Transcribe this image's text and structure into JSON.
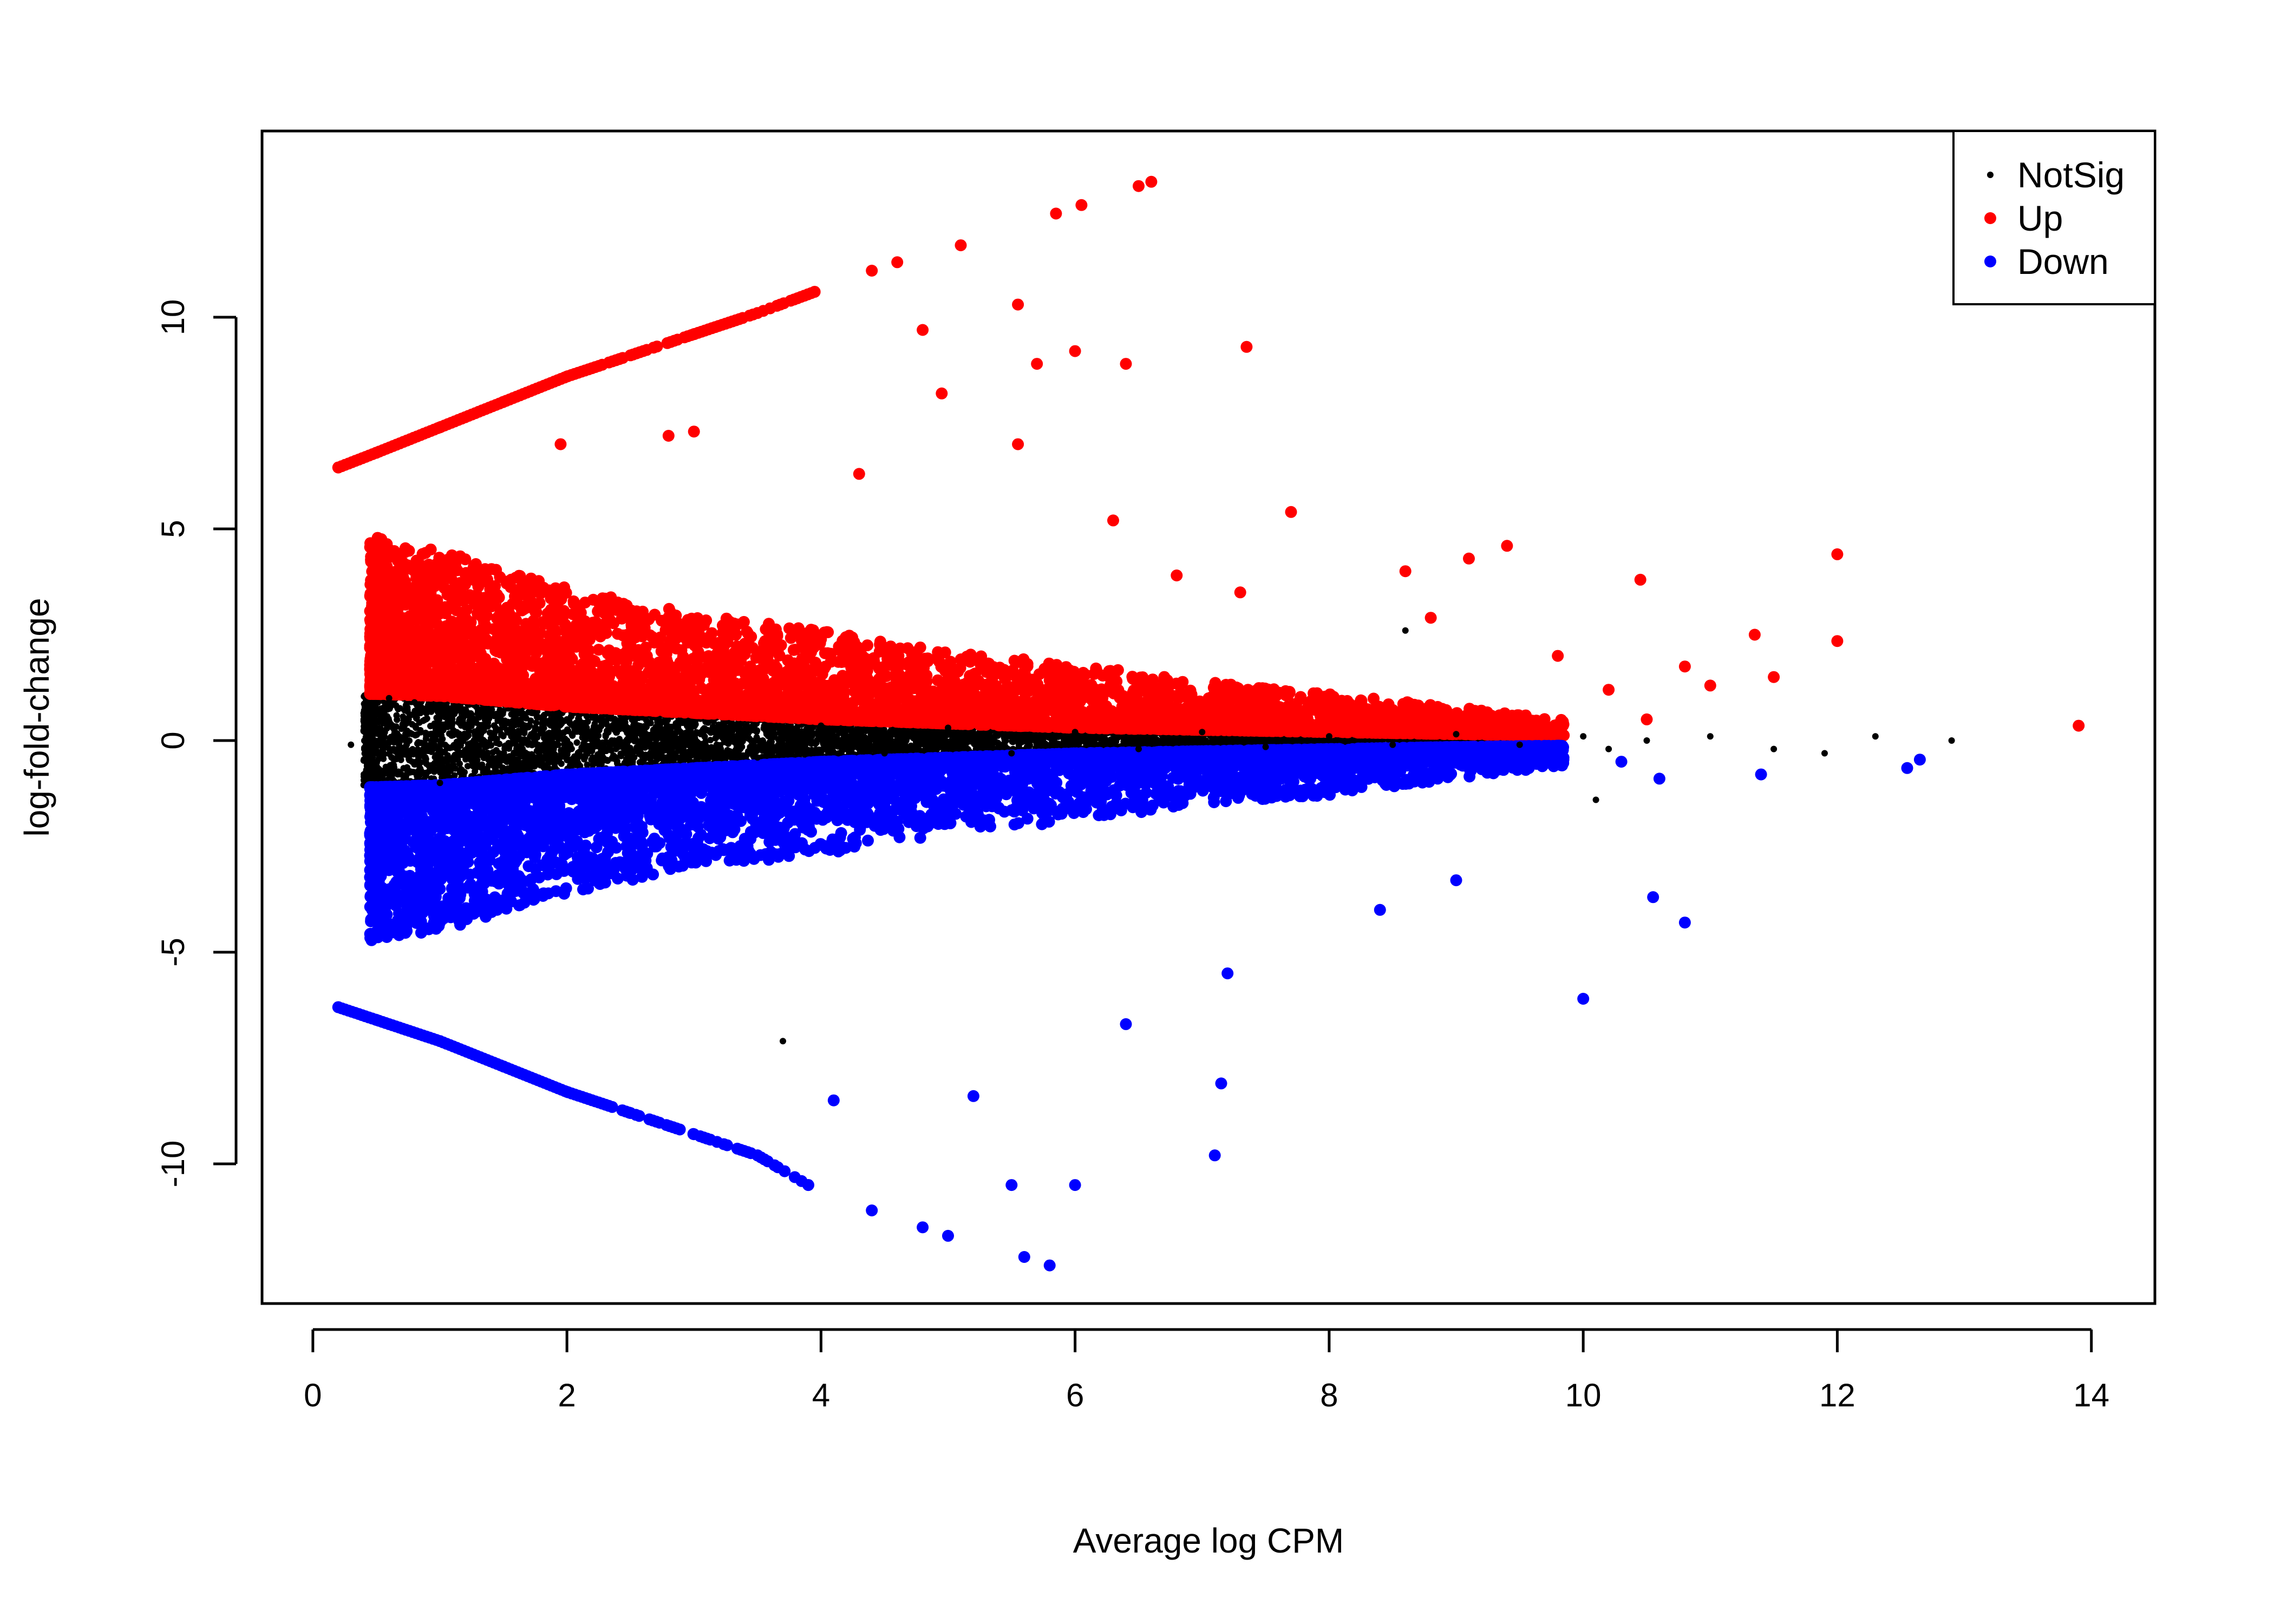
{
  "chart_data": {
    "type": "scatter",
    "title": "",
    "xlabel": "Average log CPM",
    "ylabel": "log-fold-change",
    "xlim": [
      -0.4,
      14.5
    ],
    "ylim": [
      -13.3,
      14.4
    ],
    "xticks": [
      "0",
      "2",
      "4",
      "6",
      "8",
      "10",
      "12",
      "14"
    ],
    "xtick_values": [
      0,
      2,
      4,
      6,
      8,
      10,
      12,
      14
    ],
    "yticks": [
      "-10",
      "-5",
      "0",
      "5",
      "10"
    ],
    "ytick_values": [
      -10,
      -5,
      0,
      5,
      10
    ],
    "grid": false,
    "legend_position": "top-right",
    "series": [
      {
        "name": "NotSig",
        "color": "#000000",
        "marker": "small-dot",
        "x": [
          0.3,
          0.4,
          0.5,
          0.6,
          0.8,
          1.0,
          1.3,
          1.6,
          2.0,
          2.5,
          3.0,
          3.5,
          4.0,
          4.5,
          5.0,
          5.5,
          6.0,
          6.5,
          7.0,
          7.5,
          8.0,
          8.5,
          9.0,
          9.5,
          10.0,
          10.2,
          10.5,
          11.0,
          11.5,
          11.9,
          12.3,
          12.9,
          8.6,
          3.7,
          10.1
        ],
        "y": [
          -0.1,
          0.5,
          -0.8,
          1.0,
          0.9,
          -1.0,
          0.7,
          -0.6,
          0.5,
          -0.5,
          0.4,
          -0.4,
          0.35,
          -0.3,
          0.3,
          -0.3,
          0.2,
          -0.2,
          0.2,
          -0.15,
          0.1,
          -0.1,
          0.15,
          -0.1,
          0.1,
          -0.2,
          0.0,
          0.1,
          -0.2,
          -0.3,
          0.1,
          0.0,
          2.6,
          -7.1,
          -1.4
        ],
        "band": {
          "description_rows": [
            {
              "x": 0.5,
              "half_width": 1.1
            },
            {
              "x": 1.0,
              "half_width": 1.05
            },
            {
              "x": 2.0,
              "half_width": 0.8
            },
            {
              "x": 3.0,
              "half_width": 0.65
            },
            {
              "x": 4.0,
              "half_width": 0.5
            },
            {
              "x": 5.0,
              "half_width": 0.4
            },
            {
              "x": 6.0,
              "half_width": 0.3
            },
            {
              "x": 7.0,
              "half_width": 0.25
            },
            {
              "x": 8.0,
              "half_width": 0.2
            },
            {
              "x": 9.0,
              "half_width": 0.15
            },
            {
              "x": 9.6,
              "half_width": 0.12
            }
          ]
        }
      },
      {
        "name": "Up",
        "color": "#ff0000",
        "marker": "dot",
        "x": [
          0.2,
          0.5,
          1.0,
          1.5,
          2.0,
          2.5,
          3.0,
          3.5,
          3.95,
          4.4,
          4.6,
          5.1,
          5.85,
          6.05,
          6.5,
          6.6,
          4.8,
          5.55,
          5.7,
          6.0,
          6.4,
          7.35,
          4.95,
          5.55,
          7.7,
          4.3,
          3.0,
          2.8,
          1.95,
          9.1,
          8.6,
          10.45,
          12.0,
          11.35,
          13.9,
          12.0,
          11.0,
          10.8,
          9.4,
          9.8,
          10.2,
          10.5,
          11.5,
          8.8,
          7.3,
          6.3,
          6.8
        ],
        "y": [
          6.45,
          6.8,
          7.4,
          8.0,
          8.6,
          9.1,
          9.6,
          10.1,
          10.6,
          11.1,
          11.3,
          11.7,
          12.45,
          12.65,
          13.1,
          13.2,
          9.7,
          10.3,
          8.9,
          9.2,
          8.9,
          9.3,
          8.2,
          7.0,
          5.4,
          6.3,
          7.3,
          7.2,
          7.0,
          4.3,
          4.0,
          3.8,
          4.4,
          2.5,
          0.35,
          2.35,
          1.3,
          1.75,
          4.6,
          2.0,
          1.2,
          0.5,
          1.5,
          2.9,
          3.5,
          5.2,
          3.9
        ],
        "band": {
          "description_rows": [
            {
              "x": 0.5,
              "low": 1.1,
              "high": 4.8
            },
            {
              "x": 1.0,
              "low": 1.05,
              "high": 4.5
            },
            {
              "x": 2.0,
              "low": 0.8,
              "high": 3.6
            },
            {
              "x": 3.0,
              "low": 0.65,
              "high": 3.0
            },
            {
              "x": 4.0,
              "low": 0.5,
              "high": 2.6
            },
            {
              "x": 5.0,
              "low": 0.4,
              "high": 2.1
            },
            {
              "x": 6.0,
              "low": 0.3,
              "high": 1.8
            },
            {
              "x": 7.0,
              "low": 0.25,
              "high": 1.4
            },
            {
              "x": 8.0,
              "low": 0.2,
              "high": 1.1
            },
            {
              "x": 9.0,
              "low": 0.15,
              "high": 0.8
            },
            {
              "x": 9.8,
              "low": 0.12,
              "high": 0.5
            }
          ]
        }
      },
      {
        "name": "Down",
        "color": "#0000ff",
        "marker": "dot",
        "x": [
          0.2,
          0.5,
          1.0,
          1.5,
          2.0,
          2.5,
          3.0,
          3.5,
          3.9,
          4.4,
          4.8,
          5.0,
          5.6,
          5.8,
          5.5,
          6.0,
          5.2,
          4.1,
          7.1,
          7.15,
          10.0,
          10.55,
          10.8,
          9.0,
          8.4,
          11.4,
          12.55,
          12.65,
          10.3,
          10.6,
          7.2,
          6.4
        ],
        "y": [
          -6.3,
          -6.6,
          -7.1,
          -7.7,
          -8.3,
          -8.8,
          -9.3,
          -9.8,
          -10.5,
          -11.1,
          -11.5,
          -11.7,
          -12.2,
          -12.4,
          -10.5,
          -10.5,
          -8.4,
          -8.5,
          -9.8,
          -8.1,
          -6.1,
          -3.7,
          -4.3,
          -3.3,
          -4.0,
          -0.8,
          -0.65,
          -0.45,
          -0.5,
          -0.9,
          -5.5,
          -6.7
        ],
        "band": {
          "description_rows": [
            {
              "x": 0.5,
              "low": -4.8,
              "high": -1.1
            },
            {
              "x": 1.0,
              "low": -4.5,
              "high": -1.05
            },
            {
              "x": 2.0,
              "low": -3.6,
              "high": -0.8
            },
            {
              "x": 3.0,
              "low": -3.0,
              "high": -0.65
            },
            {
              "x": 4.0,
              "low": -2.7,
              "high": -0.5
            },
            {
              "x": 5.0,
              "low": -2.2,
              "high": -0.4
            },
            {
              "x": 6.0,
              "low": -1.9,
              "high": -0.3
            },
            {
              "x": 7.0,
              "low": -1.5,
              "high": -0.25
            },
            {
              "x": 8.0,
              "low": -1.3,
              "high": -0.2
            },
            {
              "x": 9.0,
              "low": -0.9,
              "high": -0.15
            },
            {
              "x": 9.8,
              "low": -0.6,
              "high": -0.12
            }
          ]
        }
      }
    ]
  },
  "legend": {
    "items": [
      {
        "label": "NotSig",
        "color": "#000000"
      },
      {
        "label": "Up",
        "color": "#ff0000"
      },
      {
        "label": "Down",
        "color": "#0000ff"
      }
    ]
  }
}
